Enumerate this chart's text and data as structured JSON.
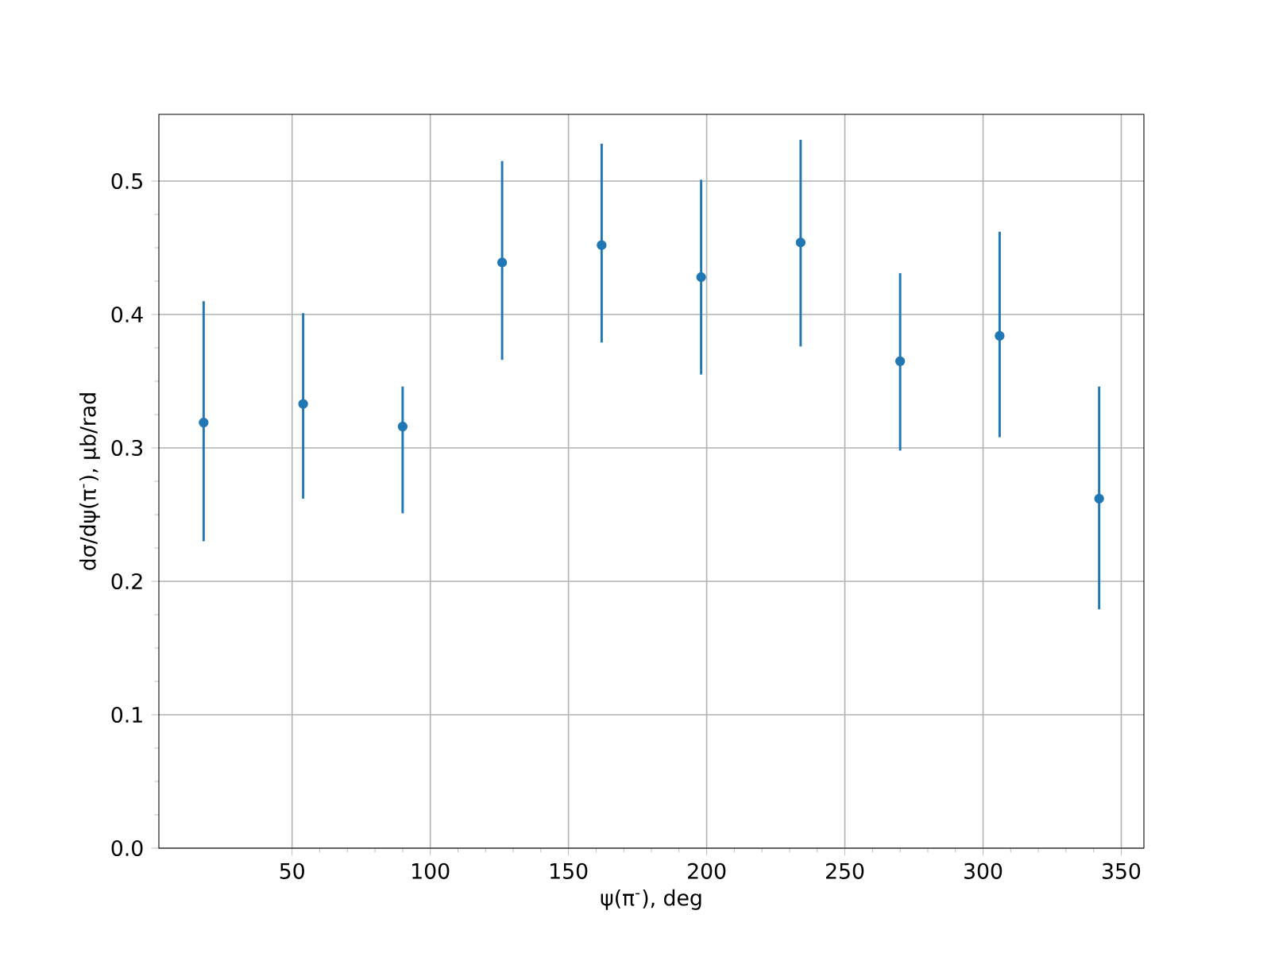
{
  "chart_data": {
    "type": "scatter",
    "xlabel": "ψ(π$^{-}$), deg",
    "ylabel": "dσ/dψ(π$^{-}$), μb/rad",
    "x": [
      18,
      54,
      90,
      126,
      162,
      198,
      234,
      270,
      306,
      342
    ],
    "series": [
      {
        "color": "#1f77b4",
        "values": [
          0.319,
          0.333,
          0.316,
          0.439,
          0.452,
          0.428,
          0.454,
          0.365,
          0.384,
          0.262
        ],
        "errors": [
          [
            0.23,
            0.41
          ],
          [
            0.262,
            0.401
          ],
          [
            0.251,
            0.346
          ],
          [
            0.366,
            0.515
          ],
          [
            0.379,
            0.528
          ],
          [
            0.355,
            0.501
          ],
          [
            0.376,
            0.531
          ],
          [
            0.298,
            0.431
          ],
          [
            0.308,
            0.462
          ],
          [
            0.179,
            0.346
          ]
        ]
      }
    ],
    "xlim": [
      1.8,
      358.2
    ],
    "ylim": [
      0,
      0.55
    ],
    "xticks": [
      50,
      100,
      150,
      200,
      250,
      300,
      350
    ],
    "yticks": [
      {
        "value": 0,
        "label": "0.0"
      },
      0.1,
      0.2,
      0.3,
      0.4,
      0.5
    ],
    "grid": true,
    "marker": "circle"
  }
}
